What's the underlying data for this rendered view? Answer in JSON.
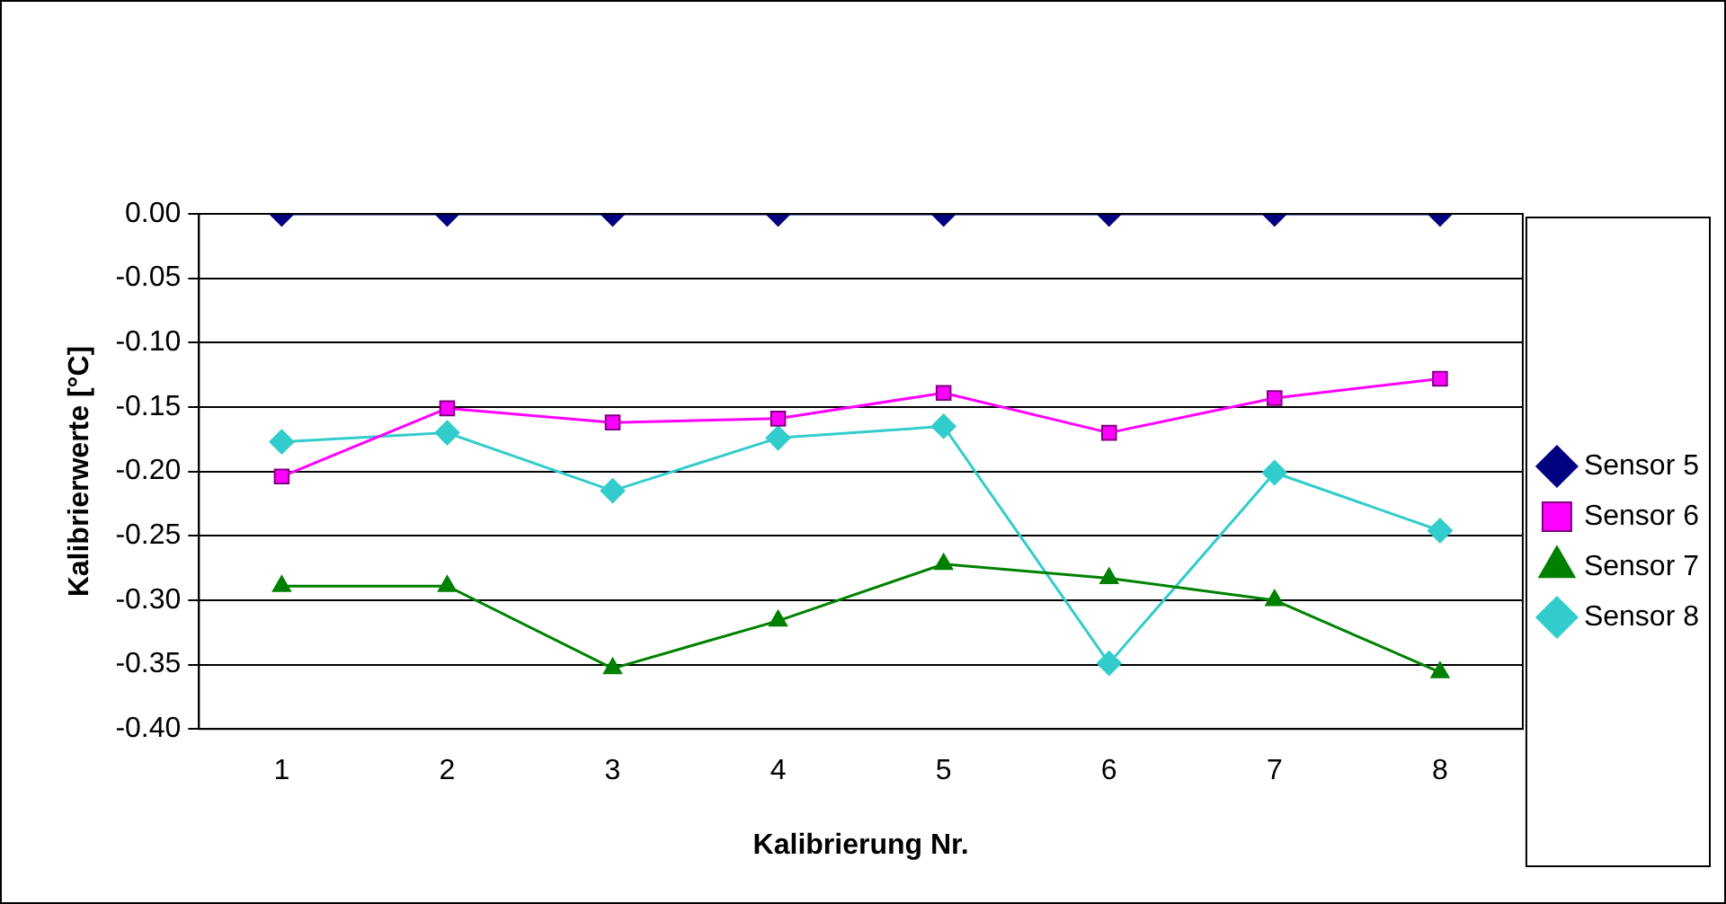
{
  "chart_data": {
    "type": "line",
    "xlabel": "Kalibrierung Nr.",
    "ylabel": "Kalibrierwerte [°C]",
    "categories": [
      "1",
      "2",
      "3",
      "4",
      "5",
      "6",
      "7",
      "8"
    ],
    "ylim": [
      -0.4,
      0
    ],
    "yticks": [
      {
        "value": -0.4,
        "label": "-0.40"
      },
      {
        "value": -0.35,
        "label": "-0.35"
      },
      {
        "value": -0.3,
        "label": "-0.30"
      },
      {
        "value": -0.25,
        "label": "-0.25"
      },
      {
        "value": -0.2,
        "label": "-0.20"
      },
      {
        "value": -0.15,
        "label": "-0.15"
      },
      {
        "value": -0.1,
        "label": "-0.10"
      },
      {
        "value": -0.05,
        "label": "-0.05"
      },
      {
        "value": 0,
        "label": "0.00"
      }
    ],
    "grid": "y",
    "legend": "right",
    "line_style": "solid",
    "series": [
      {
        "name": "Sensor 5",
        "color": "#000080",
        "marker": "diamond",
        "values": [
          0,
          0,
          0,
          0,
          0,
          0,
          0,
          0
        ]
      },
      {
        "name": "Sensor 6",
        "color": "#ff00ff",
        "marker": "square",
        "values": [
          -0.204,
          -0.151,
          -0.162,
          -0.159,
          -0.139,
          -0.17,
          -0.143,
          -0.128
        ]
      },
      {
        "name": "Sensor 7",
        "color": "#008000",
        "marker": "triangle",
        "values": [
          -0.289,
          -0.289,
          -0.353,
          -0.316,
          -0.272,
          -0.283,
          -0.3,
          -0.356
        ]
      },
      {
        "name": "Sensor 8",
        "color": "#33cccc",
        "marker": "diamond",
        "values": [
          -0.177,
          -0.17,
          -0.215,
          -0.174,
          -0.165,
          -0.349,
          -0.201,
          -0.246
        ]
      }
    ]
  }
}
